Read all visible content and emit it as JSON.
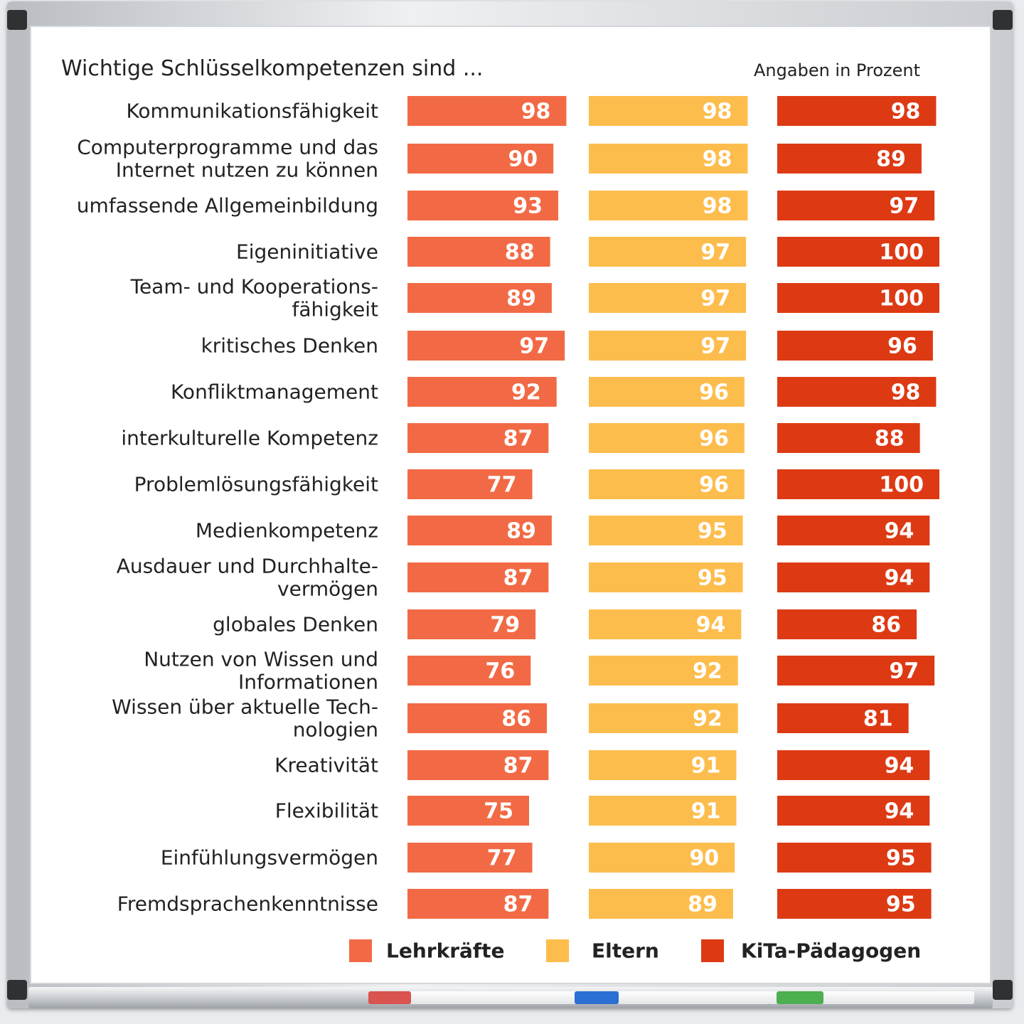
{
  "chart_data": {
    "type": "bar",
    "title": "Wichtige Schlüsselkompetenzen sind ...",
    "subtitle": "Angaben in Prozent",
    "categories": [
      [
        "Kommunikationsfähigkeit"
      ],
      [
        "Computerprogramme und das",
        "Internet nutzen zu können"
      ],
      [
        "umfassende Allgemeinbildung"
      ],
      [
        "Eigeninitiative"
      ],
      [
        "Team- und Kooperations-",
        "fähigkeit"
      ],
      [
        "kritisches Denken"
      ],
      [
        "Konfliktmanagement"
      ],
      [
        "interkulturelle Kompetenz"
      ],
      [
        "Problemlösungsfähigkeit"
      ],
      [
        "Medienkompetenz"
      ],
      [
        "Ausdauer und Durchhalte-",
        "vermögen"
      ],
      [
        "globales Denken"
      ],
      [
        "Nutzen von Wissen und",
        "Informationen"
      ],
      [
        "Wissen über aktuelle Tech-",
        "nologien"
      ],
      [
        "Kreativität"
      ],
      [
        "Flexibilität"
      ],
      [
        "Einfühlungsvermögen"
      ],
      [
        "Fremdsprachenkenntnisse"
      ]
    ],
    "series": [
      {
        "name": "Lehrkräfte",
        "color": "#f26a45",
        "values": [
          98,
          90,
          93,
          88,
          89,
          97,
          92,
          87,
          77,
          89,
          87,
          79,
          76,
          86,
          87,
          75,
          77,
          87
        ]
      },
      {
        "name": "Eltern",
        "color": "#fdbd4d",
        "values": [
          98,
          98,
          98,
          97,
          97,
          97,
          96,
          96,
          96,
          95,
          95,
          94,
          92,
          92,
          91,
          91,
          90,
          89
        ]
      },
      {
        "name": "KiTa-Pädagogen",
        "color": "#dd3a14",
        "values": [
          98,
          89,
          97,
          100,
          100,
          96,
          98,
          88,
          100,
          94,
          94,
          86,
          97,
          81,
          94,
          94,
          95,
          95
        ]
      }
    ],
    "value_labels": "inside-end",
    "legend": "bottom",
    "grid": false
  }
}
